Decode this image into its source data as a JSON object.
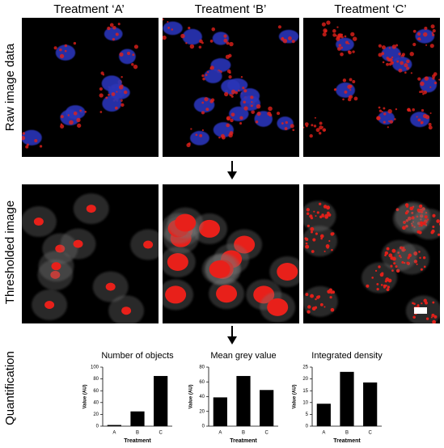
{
  "columns": [
    "Treatment ‘A’",
    "Treatment ‘B’",
    "Treatment ‘C’"
  ],
  "rows": [
    "Raw image data",
    "Thresholded image",
    "Quantification"
  ],
  "chart_data": [
    {
      "type": "bar",
      "title": "Number of objects",
      "ylabel": "Value (AU)",
      "xlabel": "Treatment",
      "categories": [
        "A",
        "B",
        "C"
      ],
      "values": [
        2,
        25,
        85
      ],
      "color": "#000000",
      "ylim": [
        0,
        100
      ],
      "yticks": [
        0,
        20,
        40,
        60,
        80,
        100
      ]
    },
    {
      "type": "bar",
      "title": "Mean grey value",
      "ylabel": "Value (AU)",
      "xlabel": "Treatment",
      "categories": [
        "A",
        "B",
        "C"
      ],
      "values": [
        39,
        68,
        49
      ],
      "color": "#000000",
      "ylim": [
        0,
        80
      ],
      "yticks": [
        0,
        20,
        40,
        60,
        80
      ]
    },
    {
      "type": "bar",
      "title": "Integrated density",
      "ylabel": "Value (AU)",
      "xlabel": "Treatment",
      "categories": [
        "A",
        "B",
        "C"
      ],
      "values": [
        9.5,
        23,
        18.5
      ],
      "color": "#000000",
      "ylim": [
        0,
        25
      ],
      "yticks": [
        0,
        5,
        10,
        15,
        20,
        25
      ]
    }
  ]
}
